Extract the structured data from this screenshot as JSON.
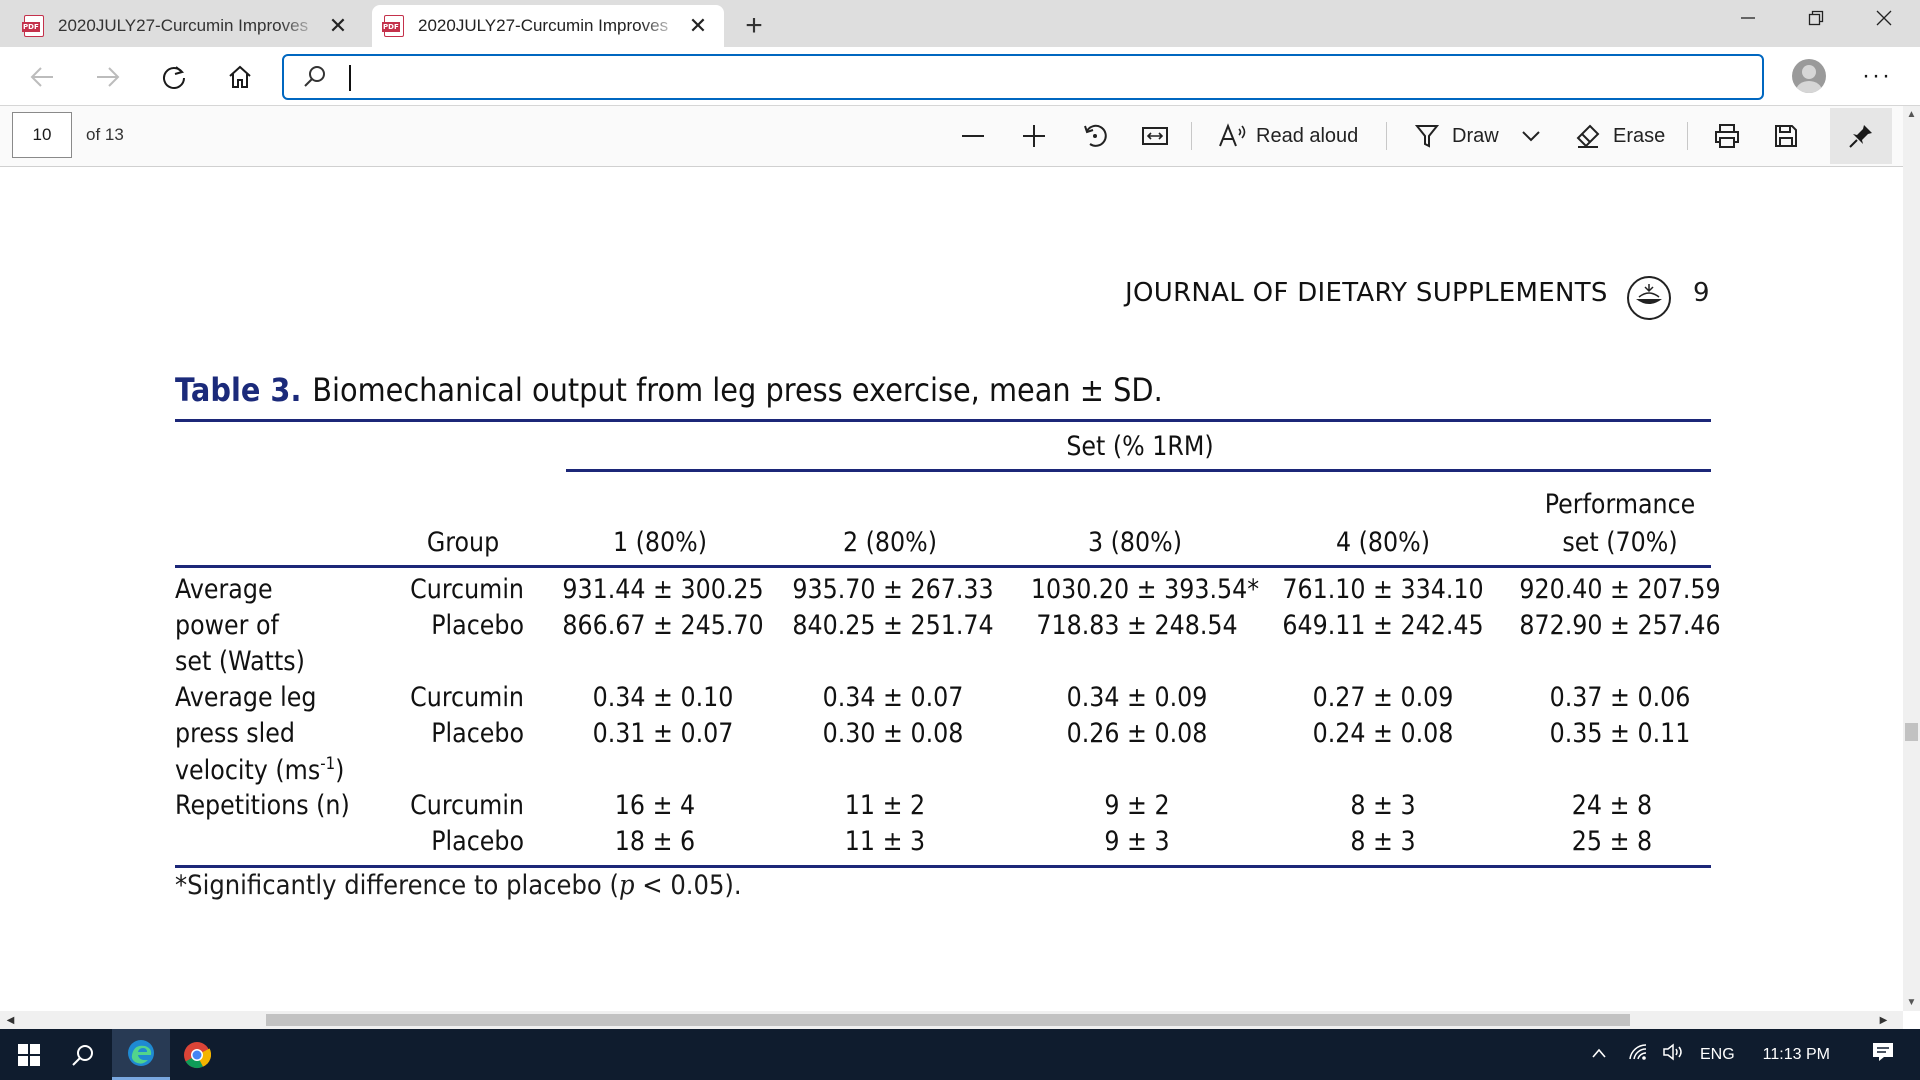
{
  "browser": {
    "tabs": [
      {
        "title": "2020JULY27-Curcumin Improves",
        "active": false
      },
      {
        "title": "2020JULY27-Curcumin Improves",
        "active": true
      }
    ],
    "address_value": "",
    "icons": [
      "back-icon",
      "forward-icon",
      "refresh-icon",
      "home-icon",
      "search-icon",
      "profile-icon",
      "more-icon"
    ]
  },
  "pdf_toolbar": {
    "page_current": "10",
    "page_total": "of 13",
    "read_aloud": "Read aloud",
    "draw": "Draw",
    "erase": "Erase"
  },
  "document": {
    "running_head": "JOURNAL OF DIETARY SUPPLEMENTS",
    "page_number": "9",
    "table_label": "Table 3.",
    "table_title": "Biomechanical output from leg press exercise, mean ± SD.",
    "spanner": "Set (% 1RM)",
    "headers": {
      "group": "Group",
      "set1": "1 (80%)",
      "set2": "2 (80%)",
      "set3": "3 (80%)",
      "set4": "4 (80%)",
      "perf_line1": "Performance",
      "perf_line2": "set (70%)"
    },
    "row_labels": {
      "power": [
        "Average",
        "power of",
        "set (Watts)"
      ],
      "velocity": [
        "Average leg",
        "press sled",
        "velocity (ms",
        "-1",
        ")"
      ],
      "reps": "Repetitions (n)"
    },
    "groups": {
      "curcumin": "Curcumin",
      "placebo": "Placebo"
    },
    "power": {
      "curcumin": [
        "931.44 ± 300.25",
        "935.70 ± 267.33",
        "1030.20 ± 393.54*",
        "761.10 ± 334.10",
        "920.40 ± 207.59"
      ],
      "placebo": [
        "866.67 ± 245.70",
        "840.25 ± 251.74",
        "718.83 ± 248.54",
        "649.11 ± 242.45",
        "872.90 ± 257.46"
      ]
    },
    "velocity": {
      "curcumin": [
        "0.34 ± 0.10",
        "0.34 ± 0.07",
        "0.34 ± 0.09",
        "0.27 ± 0.09",
        "0.37 ± 0.06"
      ],
      "placebo": [
        "0.31 ± 0.07",
        "0.30 ± 0.08",
        "0.26 ± 0.08",
        "0.24 ± 0.08",
        "0.35 ± 0.11"
      ]
    },
    "reps": {
      "curcumin": [
        "16 ± 4",
        "11 ± 2",
        "9 ± 2",
        "8 ± 3",
        "24 ± 8"
      ],
      "placebo": [
        "18 ± 6",
        "11 ± 3",
        "9 ± 3",
        "8 ± 3",
        "25 ± 8"
      ]
    },
    "footnote_pre": "*Significantly difference to placebo (",
    "footnote_p": "p",
    "footnote_post": " < 0.05)."
  },
  "taskbar": {
    "language": "ENG",
    "time": "11:13 PM"
  },
  "colors": {
    "table_rule": "#1c2778",
    "table_label": "#1b2a7a",
    "address_focus": "#0067c0",
    "taskbar_bg": "#0f1c2e"
  }
}
